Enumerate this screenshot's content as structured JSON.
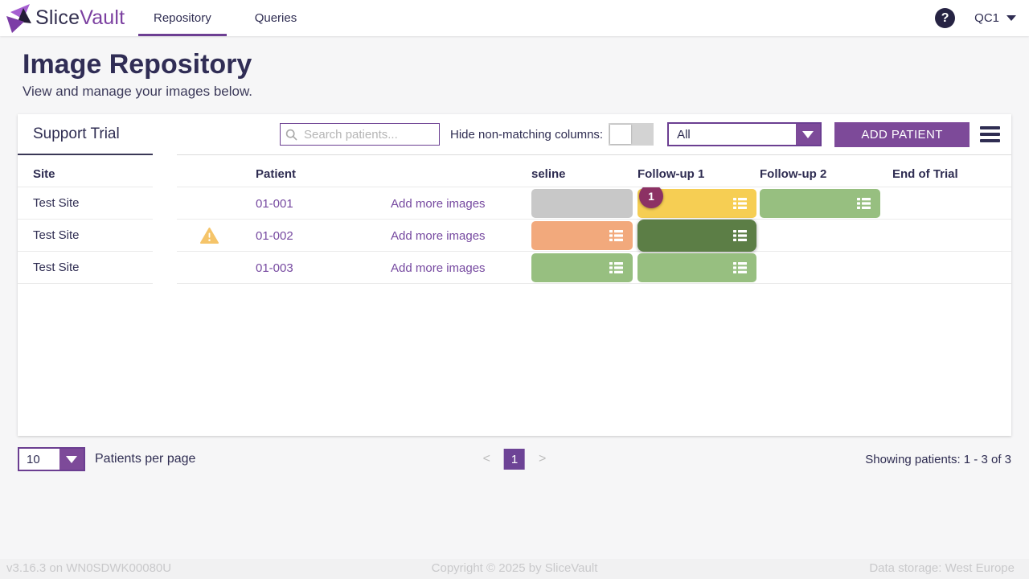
{
  "brand": {
    "primary": "Slice",
    "secondary": "Vault"
  },
  "nav": {
    "tabs": [
      {
        "label": "Repository",
        "active": true
      },
      {
        "label": "Queries",
        "active": false
      }
    ],
    "user": "QC1"
  },
  "page": {
    "title": "Image Repository",
    "subtitle": "View and manage your images below."
  },
  "trial": {
    "name": "Support Trial",
    "search_placeholder": "Search patients...",
    "hide_columns_label": "Hide non-matching columns:",
    "hide_columns_on": false,
    "filter_value": "All",
    "add_patient": "ADD PATIENT",
    "add_more_images": "Add more images",
    "columns": {
      "site": "Site",
      "patient": "Patient",
      "visit1": "seline",
      "visit2": "Follow-up 1",
      "visit3": "Follow-up 2",
      "visit4": "End of Trial"
    },
    "rows": [
      {
        "site": "Test Site",
        "warning": false,
        "patient": "01-001",
        "visits": [
          {
            "color": "gray",
            "icon": false,
            "badge": null,
            "selected": false
          },
          {
            "color": "yellow",
            "icon": true,
            "badge": "1",
            "selected": false
          },
          {
            "color": "green",
            "icon": true,
            "badge": null,
            "selected": false
          },
          null
        ]
      },
      {
        "site": "Test Site",
        "warning": true,
        "patient": "01-002",
        "visits": [
          {
            "color": "salmon",
            "icon": true,
            "badge": null,
            "selected": false
          },
          {
            "color": "dark_green",
            "icon": true,
            "badge": null,
            "selected": true
          },
          null,
          null
        ]
      },
      {
        "site": "Test Site",
        "warning": false,
        "patient": "01-003",
        "visits": [
          {
            "color": "green",
            "icon": true,
            "badge": null,
            "selected": false
          },
          {
            "color": "green",
            "icon": true,
            "badge": null,
            "selected": false
          },
          null,
          null
        ]
      }
    ]
  },
  "pagination": {
    "per_page": "10",
    "per_page_label": "Patients per page",
    "prev": "<",
    "page": "1",
    "next": ">",
    "summary": "Showing patients: 1 - 3 of 3"
  },
  "footer": {
    "version": "v3.16.3 on WN0SDWK00080U",
    "copyright": "Copyright © 2025 by SliceVault",
    "storage": "Data storage: West Europe"
  },
  "colors": {
    "gray": "#c8c8c8",
    "yellow": "#f6ce53",
    "green": "#97bf80",
    "salmon": "#f2a97c",
    "dark_green": "#5c7e46",
    "badge": "#8c3164"
  }
}
